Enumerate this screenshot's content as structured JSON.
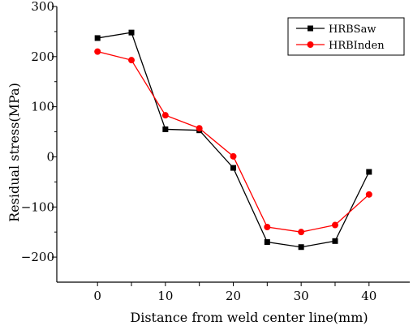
{
  "chart_data": {
    "type": "line",
    "title": "",
    "xlabel": "Distance from weld center line(mm)",
    "ylabel": "Residual stress(MPa)",
    "xlim": [
      -6,
      46
    ],
    "ylim": [
      -250,
      300
    ],
    "x_ticks": [
      0,
      5,
      10,
      15,
      20,
      25,
      30,
      35,
      40
    ],
    "x_tick_labels": [
      "0",
      "10",
      "20",
      "30",
      "40"
    ],
    "y_ticks": [
      -200,
      -100,
      0,
      100,
      200,
      300
    ],
    "y_tick_labels": [
      "-200",
      "-100",
      "0",
      "100",
      "200",
      "300"
    ],
    "grid": false,
    "legend_position": "top-right",
    "series": [
      {
        "name": "HRBSaw",
        "color": "#000000",
        "marker": "square",
        "x": [
          0,
          5,
          10,
          15,
          20,
          25,
          30,
          35,
          40
        ],
        "y": [
          237,
          248,
          55,
          53,
          -22,
          -170,
          -180,
          -168,
          -30
        ]
      },
      {
        "name": "HRBInden",
        "color": "#ff0000",
        "marker": "circle",
        "x": [
          0,
          5,
          10,
          15,
          20,
          25,
          30,
          35,
          40
        ],
        "y": [
          210,
          193,
          83,
          57,
          1,
          -140,
          -150,
          -136,
          -75
        ]
      }
    ]
  }
}
